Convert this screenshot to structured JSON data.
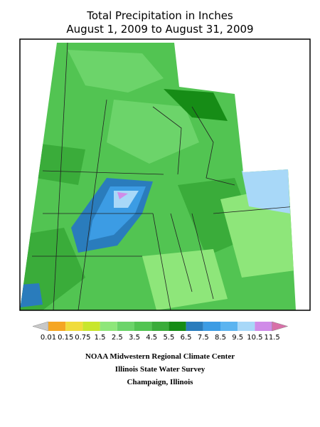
{
  "header": {
    "title": "Total Precipitation in Inches",
    "subtitle": "August 1, 2009 to August 31, 2009"
  },
  "legend": {
    "labels": [
      "0.01",
      "0.15",
      "0.75",
      "1.5",
      "2.5",
      "3.5",
      "4.5",
      "5.5",
      "6.5",
      "7.5",
      "8.5",
      "9.5",
      "10.5",
      "11.5"
    ],
    "colors": [
      "#f5a623",
      "#f0dc3c",
      "#c8e62d",
      "#8ee67a",
      "#6cd46a",
      "#52c452",
      "#3aac3a",
      "#168c16",
      "#2a7cbc",
      "#3c9ce4",
      "#5cb4f0",
      "#a8d8f8",
      "#d08ce8"
    ],
    "below_color": "#c8c8c8",
    "above_color": "#d870a8"
  },
  "credits": [
    "NOAA Midwestern Regional Climate Center",
    "Illinois State Water Survey",
    "Champaign, Illinois"
  ]
}
